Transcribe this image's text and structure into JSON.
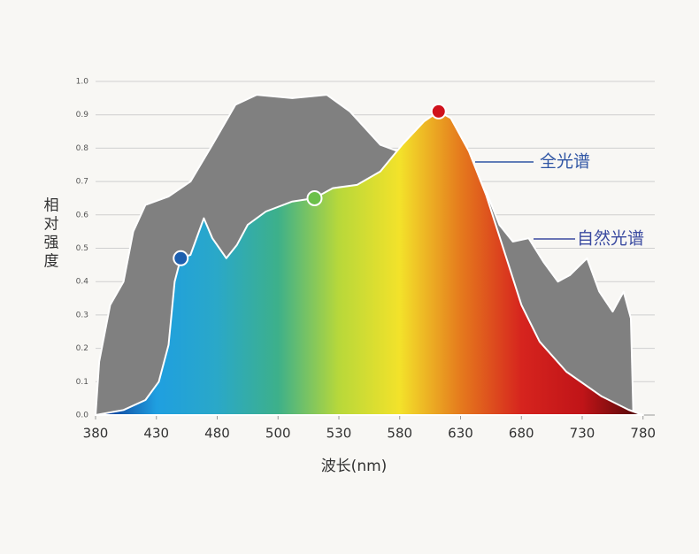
{
  "chart_data": {
    "type": "area",
    "x_label": "波长(nm)",
    "y_label": "相对强度",
    "xticks": [
      380,
      430,
      480,
      500,
      530,
      580,
      630,
      680,
      730,
      780
    ],
    "ylim": [
      0,
      1
    ],
    "yticks": [
      {
        "value": 0,
        "label": "0.0"
      },
      0.1,
      0.2,
      0.3,
      0.4,
      0.5,
      0.6,
      0.7,
      0.8,
      0.9,
      {
        "value": 1,
        "label": "1.0"
      }
    ],
    "grid": true,
    "series": [
      {
        "name": "自然光谱",
        "color": "#808080",
        "x": [
          380,
          383,
          392,
          403,
          411,
          421,
          440,
          458,
          476,
          486,
          493,
          507,
          524,
          539,
          564,
          579,
          600,
          625,
          651,
          662,
          673,
          686,
          698,
          710,
          720,
          734,
          744,
          755,
          764,
          770,
          772
        ],
        "values": [
          0,
          0.16,
          0.33,
          0.4,
          0.55,
          0.63,
          0.655,
          0.7,
          0.81,
          0.93,
          0.96,
          0.95,
          0.96,
          0.91,
          0.81,
          0.79,
          0.76,
          0.72,
          0.67,
          0.57,
          0.52,
          0.53,
          0.46,
          0.4,
          0.42,
          0.47,
          0.37,
          0.31,
          0.37,
          0.29,
          0
        ]
      },
      {
        "name": "全光谱",
        "colors": [
          "#0d2a8a",
          "#1f9fe0",
          "#2aa8c8",
          "#3db08a",
          "#b8d83a",
          "#f3e22a",
          "#e57a1d",
          "#d6241e",
          "#c01418",
          "#4a0808"
        ],
        "x": [
          380,
          403,
          421,
          432,
          440,
          445,
          450,
          458,
          465,
          469,
          476,
          483,
          486.5,
          490,
          496,
          507,
          518,
          527,
          545,
          564,
          582,
          600,
          612,
          622,
          637,
          651,
          666,
          680,
          695,
          717,
          746,
          768,
          780
        ],
        "values": [
          0,
          0.015,
          0.045,
          0.1,
          0.21,
          0.4,
          0.47,
          0.48,
          0.55,
          0.59,
          0.53,
          0.47,
          0.51,
          0.57,
          0.61,
          0.64,
          0.65,
          0.68,
          0.69,
          0.73,
          0.81,
          0.88,
          0.91,
          0.89,
          0.79,
          0.66,
          0.49,
          0.33,
          0.22,
          0.13,
          0.056,
          0.016,
          0
        ]
      }
    ],
    "highlights": [
      {
        "x": 450,
        "y": 0.47,
        "color": "#1d5fae"
      },
      {
        "x": 518,
        "y": 0.65,
        "color": "#6cc04a"
      },
      {
        "x": 612,
        "y": 0.91,
        "color": "#d0121b"
      }
    ]
  }
}
